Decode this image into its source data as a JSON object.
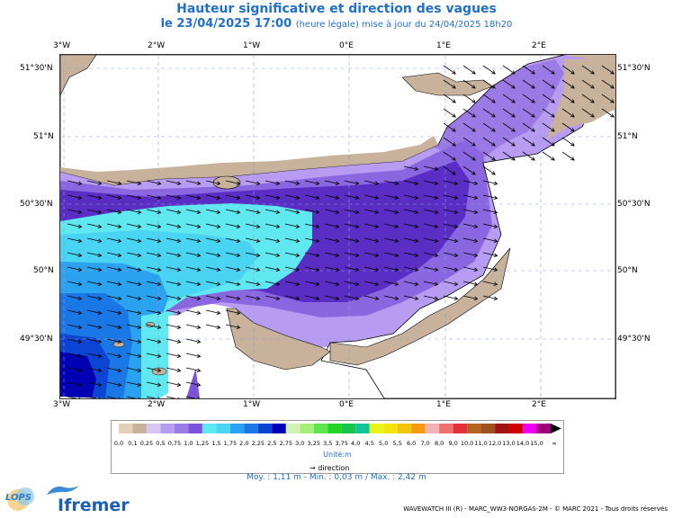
{
  "title": "Hauteur significative et direction des vagues",
  "subtitle_main": "le 23/04/2025 17:00",
  "subtitle_note": "(heure légale) mise à jour du 24/04/2025 18h20",
  "lon_ticks": [
    "3°W",
    "2°W",
    "1°W",
    "0°E",
    "1°E",
    "2°E"
  ],
  "lat_ticks": [
    "51°30'N",
    "51°N",
    "50°30'N",
    "50°N",
    "49°30'N"
  ],
  "legend": {
    "values": [
      "0,0",
      "0,1",
      "0,25",
      "0,5",
      "0,75",
      "1,0",
      "1,25",
      "1,5",
      "1,75",
      "2,0",
      "2,25",
      "2,5",
      "2,75",
      "3,0",
      "3,25",
      "3,5",
      "3,75",
      "4,0",
      "4,5",
      "5,0",
      "5,5",
      "6,0",
      "7,0",
      "8,0",
      "9,0",
      "10,0",
      "11,0",
      "12,0",
      "13,0",
      "14,0",
      "15,0",
      "∞"
    ],
    "colors": [
      "#e3cfba",
      "#c9b29c",
      "#d6c6f2",
      "#b79cf0",
      "#9c7ae6",
      "#7c52d8",
      "#60e8f0",
      "#48d4f2",
      "#2aa2f0",
      "#1a78e6",
      "#0c44d4",
      "#0000b4",
      "#d2f2b4",
      "#a6ee7a",
      "#5ee44c",
      "#24d424",
      "#16c44e",
      "#12c49a",
      "#e8f41a",
      "#f4e40c",
      "#f4c40c",
      "#f49a0c",
      "#f0b4b4",
      "#f07070",
      "#e4303c",
      "#b4641e",
      "#a0501a",
      "#a01414",
      "#d00000",
      "#f000f0",
      "#a0007c",
      "#000000"
    ],
    "unit": "Unité:m",
    "direction": "direction"
  },
  "stats": "Moy. : 1,11 m   -   Min. : 0,03 m / Max. : 2,42 m",
  "credit": "WAVEWATCH III (R) - MARC_WW3-NORGAS-2M - © MARC 2021 - Tous droits réservés",
  "logos": {
    "lops": "LOPS",
    "ifremer": "Ifremer"
  }
}
